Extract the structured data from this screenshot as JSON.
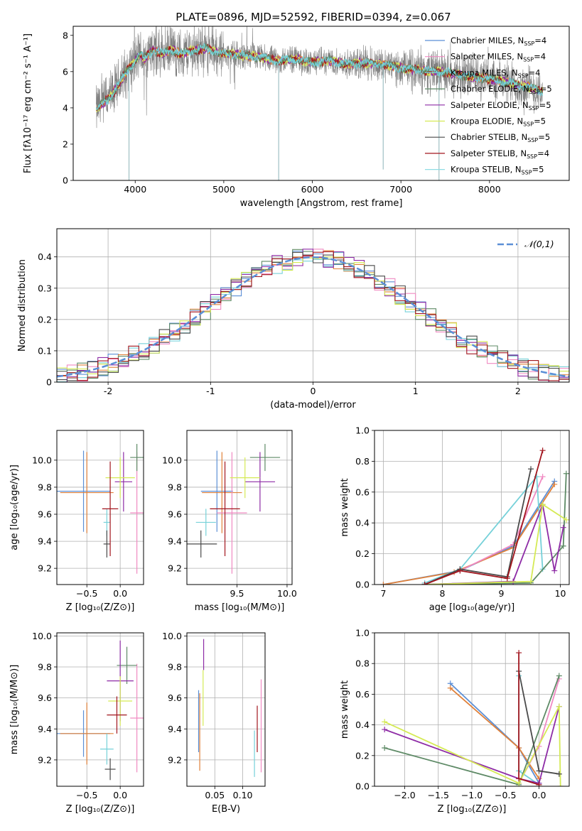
{
  "figure": {
    "title": "PLATE=0896, MJD=52592, FIBERID=0394, z=0.067",
    "colors": {
      "Chabrier MILES": "#5b8fd6",
      "Salpeter MILES": "#f08ac2",
      "Kroupa MILES": "#76d1d9",
      "Chabrier ELODIE": "#5e8a66",
      "Salpeter ELODIE": "#8e2ca6",
      "Kroupa ELODIE": "#d5ea55",
      "Chabrier STELIB": "#4a4a4a",
      "Salpeter STELIB": "#a2161e",
      "Kroupa STELIB": "#8fdce3",
      "model_orange": "#e0813a",
      "data": "#808080",
      "normal": "#5b8fd6"
    }
  },
  "chart_data": [
    {
      "id": "spectrum",
      "type": "line",
      "xlabel": "wavelength [Angstrom, rest frame]",
      "ylabel": "Flux [fλ10⁻¹⁷ erg cm⁻² s⁻¹ A⁻¹]",
      "xlim": [
        3300,
        8900
      ],
      "ylim": [
        0,
        8.5
      ],
      "xticks": [
        4000,
        5000,
        6000,
        7000,
        8000
      ],
      "yticks": [
        0,
        2,
        4,
        6,
        8
      ],
      "legend_position": "top-right",
      "legend": [
        {
          "label": "Chabrier MILES, N",
          "sub": "SSP",
          "n": "=4",
          "color": "#5b8fd6"
        },
        {
          "label": "Salpeter MILES, N",
          "sub": "SSP",
          "n": "=4",
          "color": "#f08ac2"
        },
        {
          "label": "Kroupa MILES, N",
          "sub": "SSP",
          "n": "=4",
          "color": "#76d1d9"
        },
        {
          "label": "Chabrier ELODIE, N",
          "sub": "SSP",
          "n": "=5",
          "color": "#5e8a66"
        },
        {
          "label": "Salpeter ELODIE, N",
          "sub": "SSP",
          "n": "=5",
          "color": "#8e2ca6"
        },
        {
          "label": "Kroupa ELODIE, N",
          "sub": "SSP",
          "n": "=5",
          "color": "#d5ea55"
        },
        {
          "label": "Chabrier STELIB, N",
          "sub": "SSP",
          "n": "=5",
          "color": "#4a4a4a"
        },
        {
          "label": "Salpeter STELIB, N",
          "sub": "SSP",
          "n": "=4",
          "color": "#a2161e"
        },
        {
          "label": "Kroupa STELIB, N",
          "sub": "SSP",
          "n": "=5",
          "color": "#8fdce3"
        }
      ],
      "model_continuum": {
        "wavelength": [
          3560,
          3600,
          3650,
          3700,
          3750,
          3800,
          3850,
          3900,
          3950,
          4000,
          4050,
          4100,
          4200,
          4300,
          4400,
          4500,
          4600,
          4700,
          4800,
          4900,
          5000,
          5200,
          5400,
          5600,
          5800,
          6000,
          6200,
          6400,
          6600,
          6800,
          7000,
          7200,
          7400,
          7600,
          7800,
          8000,
          8200,
          8400,
          8600
        ],
        "flux": [
          3.9,
          4.1,
          4.3,
          4.5,
          4.8,
          5.2,
          5.6,
          6.0,
          6.3,
          6.6,
          7.0,
          6.7,
          7.2,
          7.0,
          7.2,
          7.0,
          7.1,
          7.2,
          7.3,
          7.1,
          7.0,
          6.9,
          6.8,
          6.6,
          6.7,
          6.5,
          6.6,
          6.4,
          6.5,
          6.4,
          6.2,
          6.1,
          6.0,
          5.9,
          5.7,
          5.6,
          5.4,
          5.2,
          4.9
        ]
      },
      "data_dips": [
        {
          "wavelength": 3930,
          "flux": 0.0
        },
        {
          "wavelength": 5620,
          "flux": 0.0
        },
        {
          "wavelength": 6800,
          "flux": 0.6
        },
        {
          "wavelength": 7430,
          "flux": 0.0
        }
      ]
    },
    {
      "id": "residuals",
      "type": "histogram",
      "xlabel": "(data-model)/error",
      "ylabel": "Normed distribution",
      "xlim": [
        -2.5,
        2.5
      ],
      "ylim": [
        0,
        0.49
      ],
      "xticks": [
        -2,
        -1,
        0,
        1,
        2
      ],
      "yticks": [
        0.0,
        0.1,
        0.2,
        0.3,
        0.4
      ],
      "legend_position": "top-right",
      "normal_label": "𝒩(0,1)",
      "bin_edges_start": -2.5,
      "bin_width": 0.1
    },
    {
      "id": "z-age",
      "type": "errorbar",
      "xlabel": "Z [log₁₀(Z/Z⊙)]",
      "ylabel": "age  [log₁₀(age/yr)]",
      "xlim": [
        -0.95,
        0.35
      ],
      "ylim": [
        9.08,
        10.22
      ],
      "xticks": [
        -0.5,
        0.0
      ],
      "xticklabels": [
        "−0.5",
        "0.0"
      ],
      "yticks": [
        9.2,
        9.4,
        9.6,
        9.8,
        10.0
      ],
      "points": [
        {
          "x": -0.55,
          "y": 9.77,
          "xerr": 0.4,
          "yerr": 0.3,
          "color": "#5b8fd6"
        },
        {
          "x": -0.5,
          "y": 9.76,
          "xerr": 0.4,
          "yerr": 0.3,
          "color": "#e0813a"
        },
        {
          "x": 0.25,
          "y": 9.61,
          "xerr": 0.1,
          "yerr": 0.45,
          "color": "#f08ac2"
        },
        {
          "x": -0.2,
          "y": 9.54,
          "xerr": 0.05,
          "yerr": 0.1,
          "color": "#76d1d9"
        },
        {
          "x": 0.25,
          "y": 10.02,
          "xerr": 0.1,
          "yerr": 0.1,
          "color": "#5e8a66"
        },
        {
          "x": 0.05,
          "y": 9.84,
          "xerr": 0.13,
          "yerr": 0.22,
          "color": "#8e2ca6"
        },
        {
          "x": 0.0,
          "y": 9.87,
          "xerr": 0.22,
          "yerr": 0.15,
          "color": "#d5ea55"
        },
        {
          "x": -0.2,
          "y": 9.38,
          "xerr": 0.05,
          "yerr": 0.1,
          "color": "#4a4a4a"
        },
        {
          "x": -0.15,
          "y": 9.64,
          "xerr": 0.12,
          "yerr": 0.35,
          "color": "#a2161e"
        }
      ]
    },
    {
      "id": "mass-age",
      "type": "errorbar",
      "xlabel": "mass [log₁₀(M/M⊙)]",
      "ylabel": "",
      "xlim": [
        9.0,
        10.05
      ],
      "ylim": [
        9.08,
        10.22
      ],
      "xticks": [
        9.5,
        10.0
      ],
      "xticklabels": [
        "9.5",
        "10.0"
      ],
      "yticks": [
        9.2,
        9.4,
        9.6,
        9.8,
        10.0
      ],
      "points": [
        {
          "x": 9.3,
          "y": 9.77,
          "xerr": 0.16,
          "yerr": 0.3,
          "color": "#5b8fd6"
        },
        {
          "x": 9.35,
          "y": 9.76,
          "xerr": 0.2,
          "yerr": 0.3,
          "color": "#e0813a"
        },
        {
          "x": 9.45,
          "y": 9.61,
          "xerr": 0.15,
          "yerr": 0.45,
          "color": "#f08ac2"
        },
        {
          "x": 9.19,
          "y": 9.54,
          "xerr": 0.1,
          "yerr": 0.1,
          "color": "#76d1d9"
        },
        {
          "x": 9.78,
          "y": 10.02,
          "xerr": 0.15,
          "yerr": 0.1,
          "color": "#5e8a66"
        },
        {
          "x": 9.73,
          "y": 9.84,
          "xerr": 0.15,
          "yerr": 0.22,
          "color": "#8e2ca6"
        },
        {
          "x": 9.58,
          "y": 9.87,
          "xerr": 0.15,
          "yerr": 0.15,
          "color": "#d5ea55"
        },
        {
          "x": 9.14,
          "y": 9.38,
          "xerr": 0.16,
          "yerr": 0.1,
          "color": "#4a4a4a"
        },
        {
          "x": 9.38,
          "y": 9.64,
          "xerr": 0.15,
          "yerr": 0.35,
          "color": "#a2161e"
        }
      ]
    },
    {
      "id": "weights-age",
      "type": "line",
      "xlabel": "age  [log₁₀(age/yr)]",
      "ylabel": "mass weight",
      "xlim": [
        6.85,
        10.15
      ],
      "ylim": [
        0,
        1.0
      ],
      "xticks": [
        7,
        8,
        9,
        10
      ],
      "yticks": [
        0.0,
        0.2,
        0.4,
        0.6,
        0.8,
        1.0
      ],
      "series": [
        {
          "color": "#5b8fd6",
          "x": [
            7.0,
            8.3,
            9.2,
            9.9
          ],
          "y": [
            0.0,
            0.09,
            0.25,
            0.67
          ]
        },
        {
          "color": "#e0813a",
          "x": [
            7.0,
            8.2,
            9.2,
            9.9
          ],
          "y": [
            0.0,
            0.08,
            0.24,
            0.65
          ]
        },
        {
          "color": "#f08ac2",
          "x": [
            7.7,
            8.3,
            9.2,
            9.7
          ],
          "y": [
            0.01,
            0.09,
            0.26,
            0.7
          ]
        },
        {
          "color": "#76d1d9",
          "x": [
            7.7,
            8.3,
            9.6,
            9.7
          ],
          "y": [
            0.01,
            0.1,
            0.7,
            0.1
          ]
        },
        {
          "color": "#5e8a66",
          "x": [
            7.7,
            9.5,
            10.05,
            10.1
          ],
          "y": [
            0.0,
            0.01,
            0.25,
            0.72
          ]
        },
        {
          "color": "#8e2ca6",
          "x": [
            7.7,
            9.2,
            9.7,
            9.9,
            10.05
          ],
          "y": [
            0.0,
            0.02,
            0.52,
            0.09,
            0.37
          ]
        },
        {
          "color": "#d5ea55",
          "x": [
            7.7,
            9.5,
            9.7,
            10.1
          ],
          "y": [
            0.0,
            0.02,
            0.52,
            0.42
          ]
        },
        {
          "color": "#4a4a4a",
          "x": [
            7.7,
            8.3,
            9.1,
            9.5
          ],
          "y": [
            0.0,
            0.1,
            0.05,
            0.75
          ]
        },
        {
          "color": "#a2161e",
          "x": [
            7.7,
            8.3,
            9.1,
            9.7
          ],
          "y": [
            0.0,
            0.09,
            0.04,
            0.87
          ]
        }
      ]
    },
    {
      "id": "z-mass",
      "type": "errorbar",
      "xlabel": "Z [log₁₀(Z/Z⊙)]",
      "ylabel": "mass [log₁₀(M/M⊙)]",
      "xlim": [
        -0.95,
        0.35
      ],
      "ylim": [
        9.03,
        10.02
      ],
      "xticks": [
        -0.5,
        0.0
      ],
      "xticklabels": [
        "−0.5",
        "0.0"
      ],
      "yticks": [
        9.2,
        9.4,
        9.6,
        9.8,
        10.0
      ],
      "points": [
        {
          "x": -0.55,
          "y": 9.37,
          "xerr": 0.4,
          "yerr": 0.15,
          "color": "#5b8fd6"
        },
        {
          "x": -0.5,
          "y": 9.37,
          "xerr": 0.4,
          "yerr": 0.2,
          "color": "#e0813a"
        },
        {
          "x": 0.25,
          "y": 9.47,
          "xerr": 0.1,
          "yerr": 0.35,
          "color": "#f08ac2"
        },
        {
          "x": -0.2,
          "y": 9.27,
          "xerr": 0.1,
          "yerr": 0.1,
          "color": "#76d1d9"
        },
        {
          "x": 0.1,
          "y": 9.81,
          "xerr": 0.15,
          "yerr": 0.12,
          "color": "#5e8a66"
        },
        {
          "x": 0.0,
          "y": 9.71,
          "xerr": 0.2,
          "yerr": 0.26,
          "color": "#8e2ca6"
        },
        {
          "x": 0.0,
          "y": 9.58,
          "xerr": 0.18,
          "yerr": 0.16,
          "color": "#d5ea55"
        },
        {
          "x": -0.15,
          "y": 9.14,
          "xerr": 0.08,
          "yerr": 0.07,
          "color": "#4a4a4a"
        },
        {
          "x": -0.05,
          "y": 9.49,
          "xerr": 0.15,
          "yerr": 0.12,
          "color": "#a2161e"
        }
      ]
    },
    {
      "id": "ebv-mass",
      "type": "errorbar",
      "xlabel": "E(B-V)",
      "ylabel": "",
      "xlim": [
        0.0,
        0.14
      ],
      "ylim": [
        9.03,
        10.02
      ],
      "xticks": [
        0.05,
        0.1
      ],
      "xticklabels": [
        "0.05",
        "0.10"
      ],
      "yticks": [
        9.2,
        9.4,
        9.6,
        9.8,
        10.0
      ],
      "points": [
        {
          "x": 0.021,
          "y": 9.45,
          "yerr": 0.2,
          "color": "#5b8fd6"
        },
        {
          "x": 0.023,
          "y": 9.38,
          "yerr": 0.25,
          "color": "#e0813a"
        },
        {
          "x": 0.133,
          "y": 9.42,
          "yerr": 0.3,
          "color": "#f08ac2"
        },
        {
          "x": 0.121,
          "y": 9.24,
          "yerr": 0.15,
          "color": "#76d1d9"
        },
        {
          "x": 0.03,
          "y": 9.88,
          "yerr": 0.1,
          "color": "#8e2ca6"
        },
        {
          "x": 0.029,
          "y": 9.6,
          "yerr": 0.18,
          "color": "#d5ea55"
        },
        {
          "x": 0.126,
          "y": 9.4,
          "yerr": 0.15,
          "color": "#a2161e"
        }
      ]
    },
    {
      "id": "weights-z",
      "type": "line",
      "xlabel": "Z [log₁₀(Z/Z⊙)]",
      "ylabel": "mass weight",
      "xlim": [
        -2.45,
        0.45
      ],
      "ylim": [
        0,
        1.0
      ],
      "xticks": [
        -2.0,
        -1.5,
        -1.0,
        -0.5,
        0.0
      ],
      "xticklabels": [
        "−2.0",
        "−1.5",
        "−1.0",
        "−0.5",
        "0.0"
      ],
      "yticks": [
        0.0,
        0.2,
        0.4,
        0.6,
        0.8,
        1.0
      ],
      "series": [
        {
          "color": "#5b8fd6",
          "x": [
            -1.32,
            -0.3,
            0.0
          ],
          "y": [
            0.67,
            0.25,
            0.02
          ]
        },
        {
          "color": "#e0813a",
          "x": [
            -1.32,
            -0.3,
            0.0
          ],
          "y": [
            0.64,
            0.25,
            0.05
          ]
        },
        {
          "color": "#f08ac2",
          "x": [
            -0.3,
            0.0,
            0.3
          ],
          "y": [
            0.02,
            0.26,
            0.7
          ]
        },
        {
          "color": "#76d1d9",
          "x": [
            -0.3,
            -0.3,
            0.0
          ],
          "y": [
            0.72,
            0.1,
            0.01
          ]
        },
        {
          "color": "#5e8a66",
          "x": [
            -2.3,
            -0.3,
            0.3
          ],
          "y": [
            0.25,
            0.01,
            0.72
          ]
        },
        {
          "color": "#8e2ca6",
          "x": [
            -2.3,
            -0.3,
            0.0,
            0.3
          ],
          "y": [
            0.37,
            0.05,
            0.02,
            0.52
          ]
        },
        {
          "color": "#d5ea55",
          "x": [
            -2.3,
            -0.3,
            0.3,
            0.32
          ],
          "y": [
            0.42,
            0.02,
            0.52,
            0.0
          ]
        },
        {
          "color": "#4a4a4a",
          "x": [
            -0.3,
            0.0,
            0.3
          ],
          "y": [
            0.75,
            0.1,
            0.08
          ]
        },
        {
          "color": "#a2161e",
          "x": [
            -0.3,
            -0.3,
            0.0
          ],
          "y": [
            0.87,
            0.05,
            0.01
          ]
        }
      ]
    }
  ]
}
